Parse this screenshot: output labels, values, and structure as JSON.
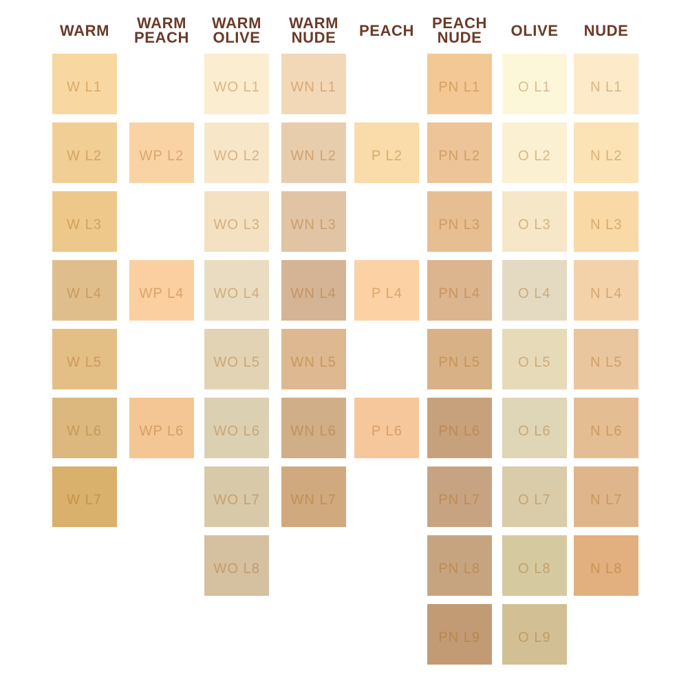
{
  "title": "foundation-shade-chart",
  "theme": {
    "page_background": "#FFFFFF",
    "header_text_color": "#6B3A26",
    "swatch_label_color": "rgba(173, 108, 30, 0.42)"
  },
  "columns": [
    {
      "id": "warm",
      "header_lines": [
        "WARM"
      ],
      "swatches": [
        {
          "label": "W L1",
          "level": 1,
          "color": "#F8D7A0"
        },
        {
          "label": "W L2",
          "level": 2,
          "color": "#F1CE93"
        },
        {
          "label": "W L3",
          "level": 3,
          "color": "#EDC88A"
        },
        {
          "label": "W L4",
          "level": 4,
          "color": "#E0BE8C"
        },
        {
          "label": "W L5",
          "level": 5,
          "color": "#E3BE85"
        },
        {
          "label": "W L6",
          "level": 6,
          "color": "#DCB87E"
        },
        {
          "label": "W L7",
          "level": 7,
          "color": "#D9B06C"
        }
      ]
    },
    {
      "id": "warm-peach",
      "header_lines": [
        "WARM",
        "PEACH"
      ],
      "swatches": [
        {
          "label": "WP L2",
          "level": 2,
          "color": "#FAD3A5"
        },
        {
          "label": "WP L4",
          "level": 4,
          "color": "#FBCFA0"
        },
        {
          "label": "WP L6",
          "level": 6,
          "color": "#F4C693"
        }
      ]
    },
    {
      "id": "warm-olive",
      "header_lines": [
        "WARM",
        "OLIVE"
      ],
      "swatches": [
        {
          "label": "WO L1",
          "level": 1,
          "color": "#FBEDCF"
        },
        {
          "label": "WO L2",
          "level": 2,
          "color": "#F8E6C9"
        },
        {
          "label": "WO L3",
          "level": 3,
          "color": "#F3E1C2"
        },
        {
          "label": "WO L4",
          "level": 4,
          "color": "#E9DCC0"
        },
        {
          "label": "WO L5",
          "level": 5,
          "color": "#E2D3B4"
        },
        {
          "label": "WO L6",
          "level": 6,
          "color": "#DCD0B3"
        },
        {
          "label": "WO L7",
          "level": 7,
          "color": "#D8C9A9"
        },
        {
          "label": "WO L8",
          "level": 8,
          "color": "#D5C0A0"
        }
      ]
    },
    {
      "id": "warm-nude",
      "header_lines": [
        "WARM",
        "NUDE"
      ],
      "swatches": [
        {
          "label": "WN L1",
          "level": 1,
          "color": "#F3D8B8"
        },
        {
          "label": "WN L2",
          "level": 2,
          "color": "#E8CDAD"
        },
        {
          "label": "WN L3",
          "level": 3,
          "color": "#E0C4A4"
        },
        {
          "label": "WN L4",
          "level": 4,
          "color": "#D5B495"
        },
        {
          "label": "WN L5",
          "level": 5,
          "color": "#DDB890"
        },
        {
          "label": "WN L6",
          "level": 6,
          "color": "#CFAE88"
        },
        {
          "label": "WN L7",
          "level": 7,
          "color": "#D0A97E"
        }
      ]
    },
    {
      "id": "peach",
      "header_lines": [
        "PEACH"
      ],
      "swatches": [
        {
          "label": "P L2",
          "level": 2,
          "color": "#F9DCA9"
        },
        {
          "label": "P L4",
          "level": 4,
          "color": "#FCD2A4"
        },
        {
          "label": "P L6",
          "level": 6,
          "color": "#F7C79C"
        }
      ]
    },
    {
      "id": "peach-nude",
      "header_lines": [
        "PEACH",
        "NUDE"
      ],
      "swatches": [
        {
          "label": "PN L1",
          "level": 1,
          "color": "#F4C894"
        },
        {
          "label": "PN L2",
          "level": 2,
          "color": "#EDC497"
        },
        {
          "label": "PN L3",
          "level": 3,
          "color": "#E7BE92"
        },
        {
          "label": "PN L4",
          "level": 4,
          "color": "#DCB48E"
        },
        {
          "label": "PN L5",
          "level": 5,
          "color": "#D9B186"
        },
        {
          "label": "PN L6",
          "level": 6,
          "color": "#C7A17C"
        },
        {
          "label": "PN L7",
          "level": 7,
          "color": "#C8A381"
        },
        {
          "label": "PN L8",
          "level": 8,
          "color": "#C7A480"
        },
        {
          "label": "PN L9",
          "level": 9,
          "color": "#C29B74"
        }
      ]
    },
    {
      "id": "olive",
      "header_lines": [
        "OLIVE"
      ],
      "swatches": [
        {
          "label": "O L1",
          "level": 1,
          "color": "#FDF7DA"
        },
        {
          "label": "O L2",
          "level": 2,
          "color": "#FBF0D1"
        },
        {
          "label": "O L3",
          "level": 3,
          "color": "#F5E7C8"
        },
        {
          "label": "O L4",
          "level": 4,
          "color": "#E4DAC1"
        },
        {
          "label": "O L5",
          "level": 5,
          "color": "#E7DAB9"
        },
        {
          "label": "O L6",
          "level": 6,
          "color": "#DFD5B7"
        },
        {
          "label": "O L7",
          "level": 7,
          "color": "#DACCA9"
        },
        {
          "label": "O L8",
          "level": 8,
          "color": "#D5C9A0"
        },
        {
          "label": "O L9",
          "level": 9,
          "color": "#D3BF94"
        }
      ]
    },
    {
      "id": "nude",
      "header_lines": [
        "NUDE"
      ],
      "swatches": [
        {
          "label": "N L1",
          "level": 1,
          "color": "#FCEAC9"
        },
        {
          "label": "N L2",
          "level": 2,
          "color": "#FBE3B5"
        },
        {
          "label": "N L3",
          "level": 3,
          "color": "#F9D9A5"
        },
        {
          "label": "N L4",
          "level": 4,
          "color": "#F4D2A9"
        },
        {
          "label": "N L5",
          "level": 5,
          "color": "#EAC69E"
        },
        {
          "label": "N L6",
          "level": 6,
          "color": "#E4BD92"
        },
        {
          "label": "N L7",
          "level": 7,
          "color": "#DFB68B"
        },
        {
          "label": "N L8",
          "level": 8,
          "color": "#E2AF7E"
        }
      ]
    }
  ]
}
